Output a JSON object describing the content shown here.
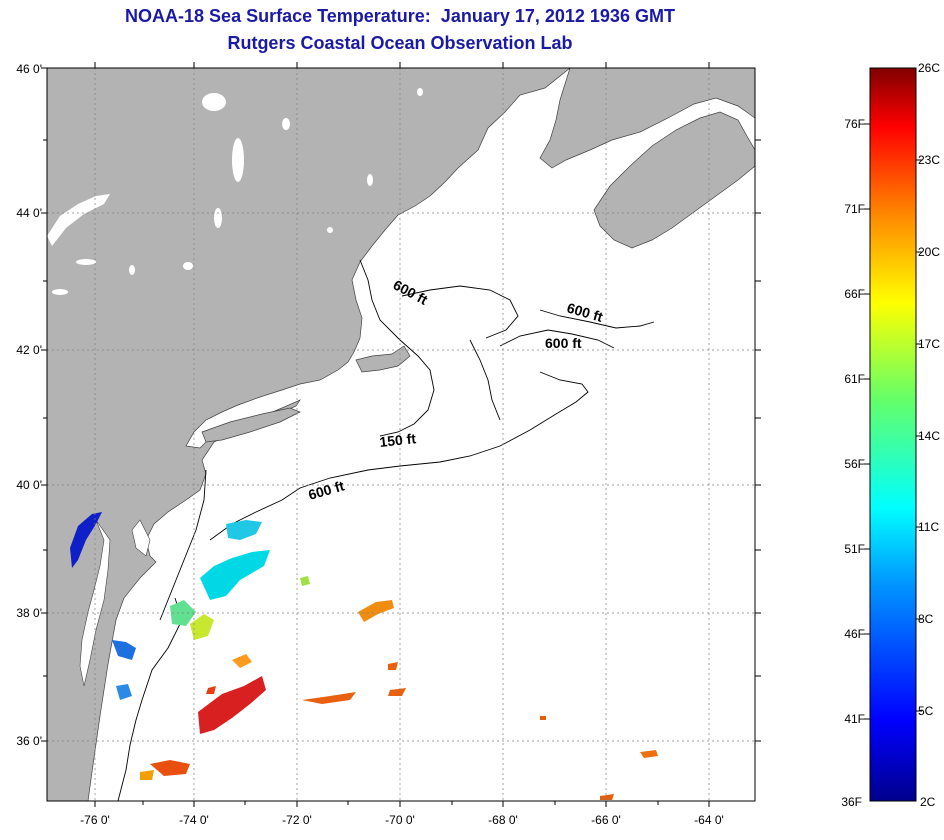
{
  "header": {
    "title": "NOAA-18 Sea Surface Temperature:  January 17, 2012 1936 GMT",
    "subtitle": "Rutgers Coastal Ocean Observation Lab"
  },
  "map": {
    "lat_labels": [
      "46 0'",
      "44 0'",
      "42 0'",
      "40 0'",
      "38 0'",
      "36 0'"
    ],
    "lon_labels": [
      "-76 0'",
      "-74 0'",
      "-72 0'",
      "-70 0'",
      "-68 0'",
      "-66 0'",
      "-64 0'"
    ],
    "depth_labels": [
      "600 ft",
      "600 ft",
      "600 ft",
      "150 ft",
      "600 ft"
    ],
    "land_color": "#b3b3b3",
    "water_color": "#ffffff",
    "sst_patches": [
      {
        "label": "bay-blue",
        "temp_c": 4
      },
      {
        "label": "coastal-blue",
        "temp_c": 8
      },
      {
        "label": "shelf-cyan",
        "temp_c": 11
      },
      {
        "label": "slope-green",
        "temp_c": 14
      },
      {
        "label": "slope-yellow",
        "temp_c": 17
      },
      {
        "label": "offshore-orange",
        "temp_c": 21
      },
      {
        "label": "gulf-stream-red",
        "temp_c": 25
      }
    ]
  },
  "colorbar": {
    "c_labels": [
      "26C",
      "23C",
      "20C",
      "17C",
      "14C",
      "11C",
      "8C",
      "5C",
      "2C"
    ],
    "f_labels": [
      "76F",
      "71F",
      "66F",
      "61F",
      "56F",
      "51F",
      "46F",
      "41F",
      "36F"
    ],
    "min_c": 2,
    "max_c": 26
  }
}
